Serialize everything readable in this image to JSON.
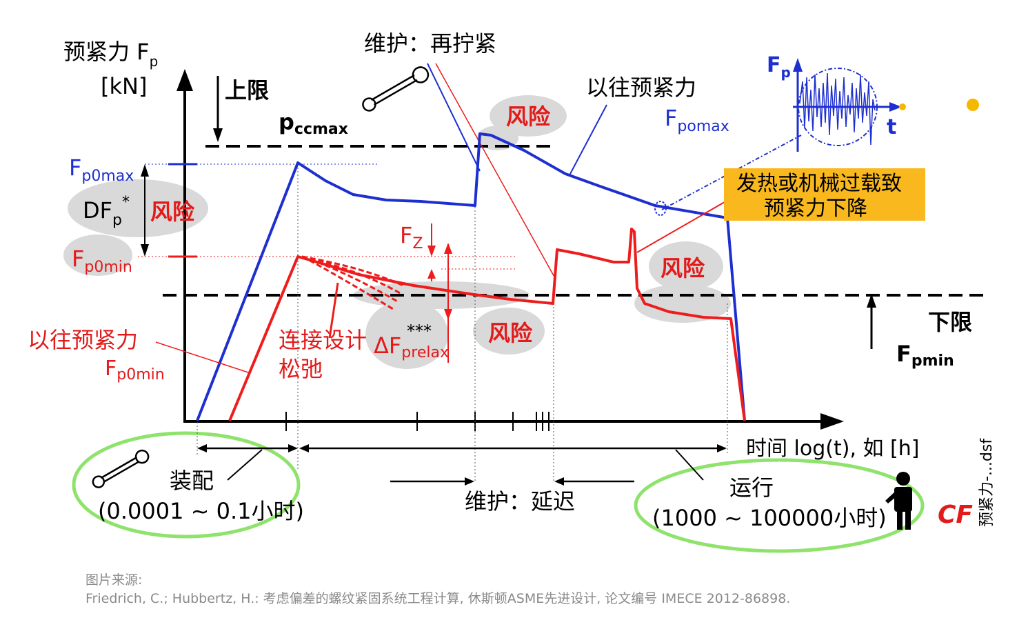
{
  "colors": {
    "upper_curve": "#1e2fd0",
    "lower_curve": "#ee1c1c",
    "risk_text": "#e31a1a",
    "risk_blob": "#d9d9d9",
    "phase_ellipse": "#8fe36d",
    "callout_bg": "#f9b81e",
    "dot": "#f5b800",
    "axis": "#000000"
  },
  "axis": {
    "y_label": "预紧力 F",
    "y_label_sub": "p",
    "y_unit": "[kN]",
    "x_label": "时间 log(t), 如 [h]"
  },
  "labels": {
    "maintenance_retighten": "维护：再拧紧",
    "upper_limit": "上限",
    "pccmax_main": "p",
    "pccmax_sub": "ccmax",
    "prev_preload_upper": "以往预紧力",
    "fpomax_main": "F",
    "fpomax_sub": "pomax",
    "fp0max_main": "F",
    "fp0max_sub": "p0max",
    "dfp_main": "DF",
    "dfp_sub": "p",
    "dfp_star": "*",
    "fp0min_main": "F",
    "fp0min_sub": "p0min",
    "fz_main": "F",
    "fz_sub": "Z",
    "callout_line1": "发热或机械过载致",
    "callout_line2": "预紧力下降",
    "lower_limit": "下限",
    "fpmin_main": "F",
    "fpmin_sub": "pmin",
    "prev_preload_lower": "以往预紧力",
    "fp0min2_main": "F",
    "fp0min2_sub": "p0min",
    "relax_line1": "连接设计",
    "relax_line2": "松弛",
    "dfprelax_main": "ΔF",
    "dfprelax_sub": "prelax",
    "dfprelax_star": "***",
    "risk": "风险",
    "inset_fp_main": "F",
    "inset_fp_sub": "p",
    "inset_t": "t",
    "side_note": "预紧力-...dsf",
    "logo": "CF"
  },
  "phases": {
    "assembly": {
      "name": "装配",
      "range": "(0.0001 ~ 0.1小时)"
    },
    "maintenance_delay": {
      "name": "维护：延迟"
    },
    "operation": {
      "name": "运行",
      "range": "(1000 ~ 100000小时)"
    }
  },
  "source": {
    "heading": "图片来源:",
    "citation": "Friedrich, C.; Hubbertz, H.: 考虑偏差的螺纹紧固系统工程计算, 休斯顿ASME先进设计, 论文编号 IMECE 2012-86898."
  }
}
